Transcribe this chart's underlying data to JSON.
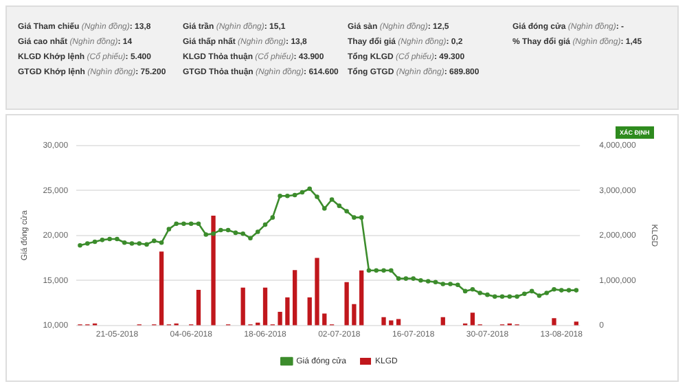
{
  "chart_data": {
    "type": "line",
    "ylabel": "Giá đóng cửa",
    "y2label": "KLGD",
    "annotations": [
      "Giá Tham chiếu (Nghìn đồng): 13,8",
      "Giá cao nhất (Nghìn đồng): 14",
      "KLGD Khớp lệnh (Cổ phiếu): 5.400",
      "GTGD Khớp lệnh (Nghìn đồng): 75.200",
      "Giá trần (Nghìn đồng): 15,1",
      "Giá thấp nhất (Nghìn đồng): 13,8",
      "KLGD Thỏa thuận (Cổ phiếu): 43.900",
      "GTGD Thỏa thuận (Nghìn đồng): 614.600",
      "Giá sàn (Nghìn đồng): 12,5",
      "Thay đổi giá (Nghìn đồng): 0,2",
      "Tổng KLGD (Cổ phiếu): 49.300",
      "Tổng GTGD (Nghìn đồng): 689.800",
      "Giá đóng cửa (Nghìn đồng): -",
      "% Thay đổi giá (Nghìn đồng): 1,45",
      "XÁC ĐỊNH"
    ],
    "categories": [
      null,
      null,
      null,
      null,
      null,
      "21-05-2018",
      null,
      null,
      null,
      null,
      null,
      null,
      null,
      null,
      null,
      "04-06-2018",
      null,
      null,
      null,
      null,
      null,
      null,
      null,
      null,
      null,
      "18-06-2018",
      null,
      null,
      null,
      null,
      null,
      null,
      null,
      null,
      null,
      "02-07-2018",
      null,
      null,
      null,
      null,
      null,
      null,
      null,
      null,
      null,
      "16-07-2018",
      null,
      null,
      null,
      null,
      null,
      null,
      null,
      null,
      null,
      "30-07-2018",
      null,
      null,
      null,
      null,
      null,
      null,
      null,
      null,
      null,
      "13-08-2018",
      null,
      null
    ],
    "series": [
      {
        "name": "Giá đóng cửa",
        "color": "#3c8c2c",
        "values": [
          18900,
          19100,
          19300,
          19500,
          19600,
          19600,
          19200,
          19100,
          19100,
          19000,
          19400,
          19200,
          20700,
          21300,
          21300,
          21300,
          21300,
          20100,
          20200,
          20600,
          20600,
          20300,
          20200,
          19700,
          20400,
          21200,
          22000,
          24400,
          24400,
          24500,
          24800,
          25200,
          24300,
          23000,
          24000,
          23300,
          22700,
          22000,
          22000,
          16100,
          16100,
          16100,
          16100,
          15200,
          15200,
          15200,
          15000,
          14900,
          14800,
          14600,
          14600,
          14500,
          13800,
          14000,
          13600,
          13400,
          13200,
          13200,
          13200,
          13200,
          13500,
          13800,
          13300,
          13600,
          14000,
          13900,
          13900,
          13900
        ]
      },
      {
        "name": "KLGD",
        "type": "bar",
        "axis": "y2",
        "color": "#c0171c",
        "values": [
          10000,
          10000,
          30000,
          null,
          null,
          null,
          null,
          null,
          10000,
          null,
          10000,
          1630000,
          10000,
          30000,
          null,
          10000,
          780000,
          null,
          2430000,
          null,
          10000,
          null,
          830000,
          10000,
          50000,
          830000,
          10000,
          290000,
          610000,
          1220000,
          null,
          610000,
          1490000,
          250000,
          10000,
          null,
          950000,
          460000,
          1210000,
          null,
          null,
          170000,
          100000,
          130000,
          null,
          null,
          null,
          null,
          null,
          170000,
          null,
          null,
          30000,
          270000,
          10000,
          null,
          null,
          10000,
          30000,
          10000,
          null,
          null,
          null,
          null,
          150000,
          null,
          null,
          70000
        ]
      }
    ],
    "ylim": [
      10000,
      30000
    ],
    "yticks": [
      {
        "value": 10000,
        "label": "10,000"
      },
      {
        "value": 15000,
        "label": "15,000"
      },
      {
        "value": 20000,
        "label": "20,000"
      },
      {
        "value": 25000,
        "label": "25,000"
      },
      {
        "value": 30000,
        "label": "30,000"
      }
    ],
    "y2lim": [
      0,
      4000000
    ],
    "y2ticks": [
      {
        "value": 0,
        "label": "0"
      },
      {
        "value": 1000000,
        "label": "1,000,000"
      },
      {
        "value": 2000000,
        "label": "2,000,000"
      },
      {
        "value": 3000000,
        "label": "3,000,000"
      },
      {
        "value": 4000000,
        "label": "4,000,000"
      }
    ],
    "grid": "y",
    "legend": "bottom",
    "marker": "circle",
    "line_style": "solid"
  }
}
